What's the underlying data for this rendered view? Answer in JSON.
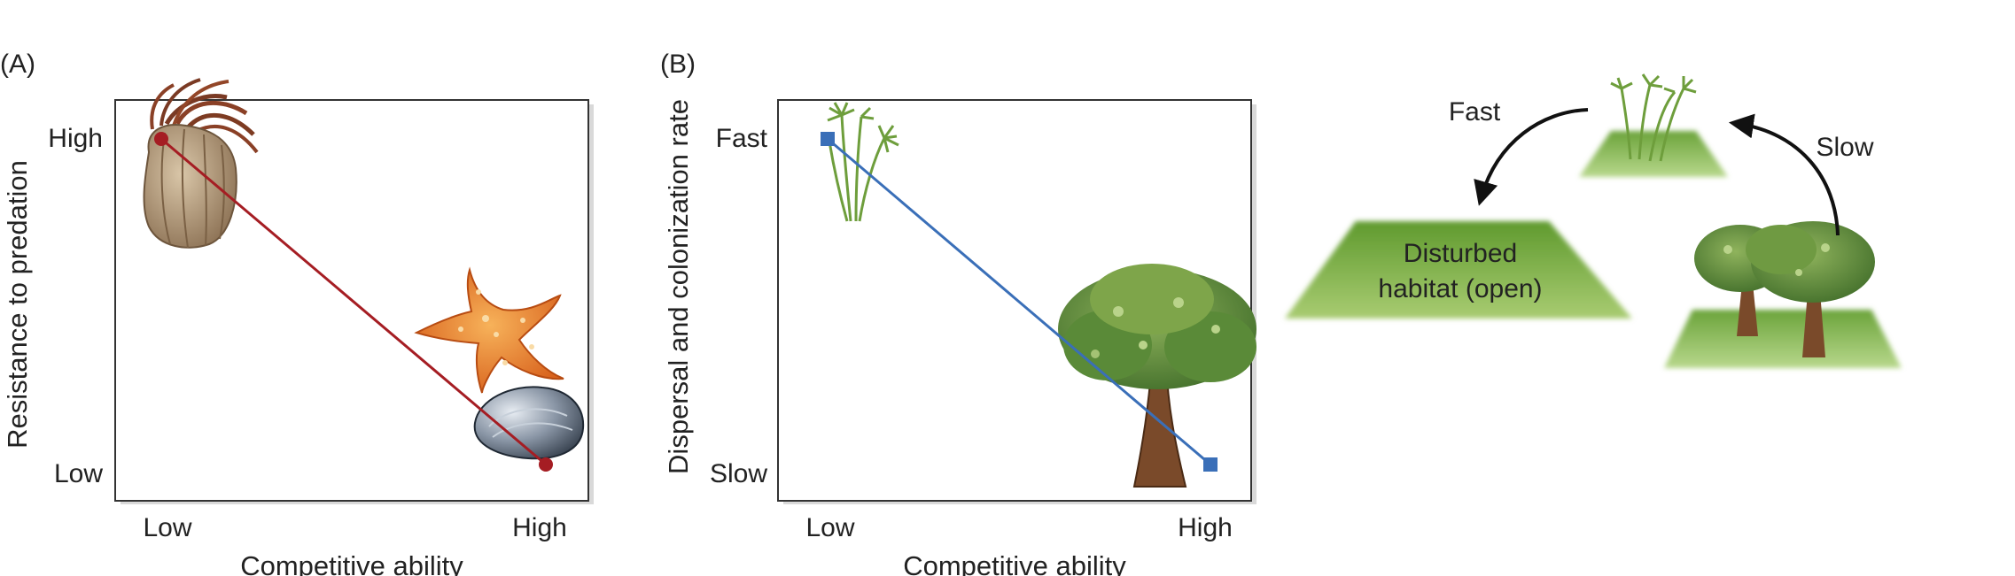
{
  "panel_a": {
    "letter": "(A)",
    "ylabel": "Resistance to predation",
    "xlabel": "Competitive ability",
    "x_ticks": [
      "Low",
      "High"
    ],
    "y_ticks": [
      "High",
      "Low"
    ],
    "line_color": "#a51d23"
  },
  "panel_b": {
    "letter": "(B)",
    "ylabel": "Dispersal and colonization rate",
    "xlabel": "Competitive ability",
    "x_ticks": [
      "Low",
      "High"
    ],
    "y_ticks": [
      "Fast",
      "Slow"
    ],
    "line_color": "#3a6fb8"
  },
  "cycle": {
    "fast_label": "Fast",
    "slow_label": "Slow",
    "habitat_line1": "Disturbed",
    "habitat_line2": "habitat (open)",
    "habitat_color": "#8bb54e"
  },
  "icons": [
    "anemone-icon",
    "starfish-icon",
    "mussel-icon",
    "grass-icon",
    "oak-tree-icon",
    "trees-icon"
  ]
}
